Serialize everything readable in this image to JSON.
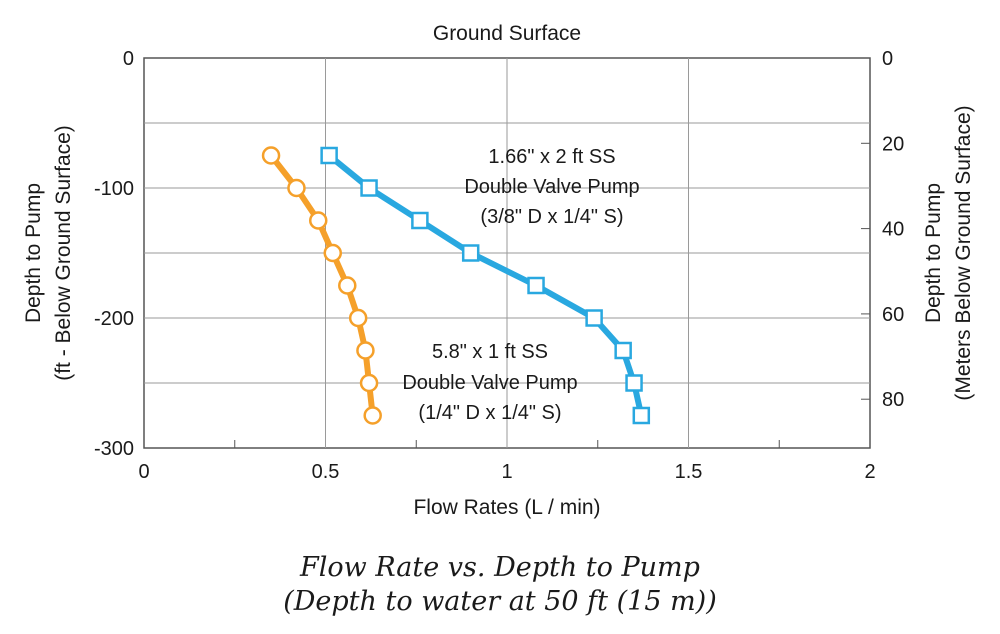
{
  "chart_data": {
    "type": "line",
    "top_label": "Ground Surface",
    "xlabel": "Flow Rates (L / min)",
    "ylabel_left": [
      "Depth to Pump",
      "(ft - Below Ground Surface)"
    ],
    "ylabel_right": [
      "Depth to Pump",
      "(Meters Below Ground Surface)"
    ],
    "xlim": [
      0,
      2
    ],
    "ylim": [
      -300,
      0
    ],
    "x_ticks": [
      0,
      0.5,
      1,
      1.5,
      2
    ],
    "x_tick_labels": [
      "0",
      "0.5",
      "1",
      "1.5",
      "2"
    ],
    "y_ticks": [
      0,
      -100,
      -200,
      -300
    ],
    "y_tick_labels": [
      "0",
      "-100",
      "-200",
      "-300"
    ],
    "y_grid": [
      -50,
      -100,
      -150,
      -200,
      -250
    ],
    "right_ticks_m": [
      0,
      20,
      40,
      60,
      80
    ],
    "right_tick_labels": [
      "0",
      "20",
      "40",
      "60",
      "80"
    ],
    "grid": true,
    "series": [
      {
        "name": "1.66\" x 2 ft SS Double Valve Pump (3/8\" D x 1/4\" S)",
        "label_lines": [
          "1.66\" x 2 ft SS",
          "Double Valve Pump",
          "(3/8\" D x 1/4\" S)"
        ],
        "color": "#29a8e0",
        "marker": "square",
        "x": [
          0.51,
          0.62,
          0.76,
          0.9,
          1.08,
          1.24,
          1.32,
          1.35,
          1.37
        ],
        "y": [
          -75,
          -100,
          -125,
          -150,
          -175,
          -200,
          -225,
          -250,
          -275
        ]
      },
      {
        "name": "5.8\" x 1 ft SS Double Valve Pump (1/4\" D x 1/4\" S)",
        "label_lines": [
          "5.8\" x 1 ft SS",
          "Double Valve Pump",
          "(1/4\" D x 1/4\" S)"
        ],
        "color": "#f5a02a",
        "marker": "circle",
        "x": [
          0.35,
          0.42,
          0.48,
          0.52,
          0.56,
          0.59,
          0.61,
          0.62,
          0.63
        ],
        "y": [
          -75,
          -100,
          -125,
          -150,
          -175,
          -200,
          -225,
          -250,
          -275
        ]
      }
    ]
  },
  "caption": {
    "line1": "Flow Rate vs. Depth to Pump",
    "line2": "(Depth to water at 50 ft (15 m))"
  }
}
